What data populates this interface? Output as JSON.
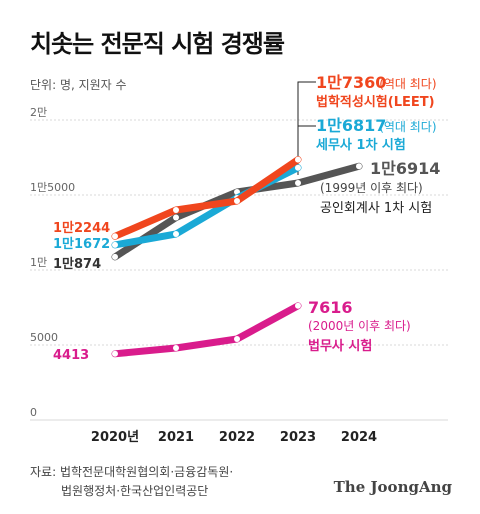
{
  "header": {
    "title": "치솟는 전문직 시험 경쟁률",
    "unit_label": "단위: 명, 지원자 수"
  },
  "footer": {
    "source_line1": "자료: 법학전문대학원협의회·금융감독원·",
    "source_line2": "법원행정처·한국산업인력공단",
    "logo": "The JoongAng"
  },
  "chart_data": {
    "type": "line",
    "x": [
      "2020년",
      "2021",
      "2022",
      "2023",
      "2024"
    ],
    "ylim": [
      0,
      20000
    ],
    "y_ticks": [
      {
        "value": 0,
        "label": "0"
      },
      {
        "value": 5000,
        "label": "5000"
      },
      {
        "value": 10000,
        "label": "1만"
      },
      {
        "value": 15000,
        "label": "1만5000"
      },
      {
        "value": 20000,
        "label": "2만"
      }
    ],
    "grid": true,
    "series": [
      {
        "name": "법학적성시험(LEET)",
        "color": "#f0461e",
        "values": [
          12244,
          14000,
          14600,
          17360,
          null
        ],
        "start_label": "1만2244",
        "end_value_label": "1만7360",
        "end_note": "(역대 최다)"
      },
      {
        "name": "세무사 1차 시험",
        "color": "#1aa9d6",
        "values": [
          11672,
          12400,
          14800,
          16817,
          null
        ],
        "start_label": "1만1672",
        "end_value_label": "1만6817",
        "end_note": "(역대 최다)"
      },
      {
        "name": "공인회계사 1차 시험",
        "color": "#555555",
        "values": [
          10874,
          13500,
          15200,
          15800,
          16914
        ],
        "start_label": "1만874",
        "end_value_label": "1만6914",
        "end_note": "(1999년 이후 최다)"
      },
      {
        "name": "법무사 시험",
        "color": "#d91c8c",
        "values": [
          4413,
          4800,
          5400,
          7616,
          null
        ],
        "start_label": "4413",
        "end_value_label": "7616",
        "end_note": "(2000년 이후 최다)"
      }
    ]
  }
}
